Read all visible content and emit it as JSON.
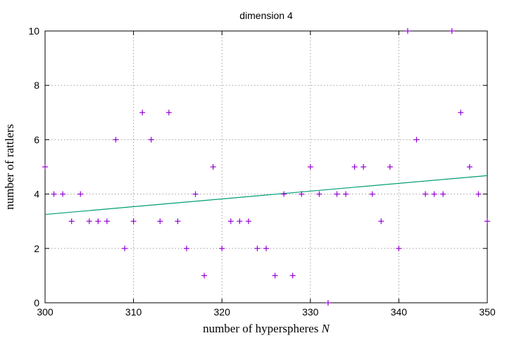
{
  "chart_data": {
    "type": "scatter",
    "title": "dimension 4",
    "xlabel": "number of hyperspheres",
    "xlabel_var": "N",
    "ylabel": "number of rattlers",
    "xlim": [
      300,
      350
    ],
    "ylim": [
      0,
      10
    ],
    "xticks": [
      "300",
      "310",
      "320",
      "330",
      "340",
      "350"
    ],
    "yticks": [
      "0",
      "2",
      "4",
      "6",
      "8",
      "10"
    ],
    "grid": true,
    "colors": {
      "points": "#9400d3",
      "fit": "#009e73"
    },
    "series": [
      {
        "marker": "plus",
        "points": [
          [
            300,
            5
          ],
          [
            301,
            4
          ],
          [
            302,
            4
          ],
          [
            303,
            3
          ],
          [
            304,
            4
          ],
          [
            305,
            3
          ],
          [
            306,
            3
          ],
          [
            307,
            3
          ],
          [
            308,
            6
          ],
          [
            309,
            2
          ],
          [
            310,
            3
          ],
          [
            311,
            7
          ],
          [
            312,
            6
          ],
          [
            313,
            3
          ],
          [
            314,
            7
          ],
          [
            315,
            3
          ],
          [
            316,
            2
          ],
          [
            317,
            4
          ],
          [
            318,
            1
          ],
          [
            319,
            5
          ],
          [
            320,
            2
          ],
          [
            321,
            3
          ],
          [
            322,
            3
          ],
          [
            323,
            3
          ],
          [
            324,
            2
          ],
          [
            325,
            2
          ],
          [
            326,
            1
          ],
          [
            327,
            4
          ],
          [
            328,
            1
          ],
          [
            329,
            4
          ],
          [
            330,
            5
          ],
          [
            331,
            4
          ],
          [
            332,
            0
          ],
          [
            333,
            4
          ],
          [
            334,
            4
          ],
          [
            335,
            5
          ],
          [
            336,
            5
          ],
          [
            337,
            4
          ],
          [
            338,
            3
          ],
          [
            339,
            5
          ],
          [
            340,
            2
          ],
          [
            341,
            10
          ],
          [
            342,
            6
          ],
          [
            343,
            4
          ],
          [
            344,
            4
          ],
          [
            345,
            4
          ],
          [
            346,
            10
          ],
          [
            347,
            7
          ],
          [
            348,
            5
          ],
          [
            349,
            4
          ],
          [
            350,
            3
          ]
        ]
      },
      {
        "marker": "line",
        "points": [
          [
            300,
            3.25
          ],
          [
            350,
            4.68
          ]
        ]
      }
    ]
  }
}
